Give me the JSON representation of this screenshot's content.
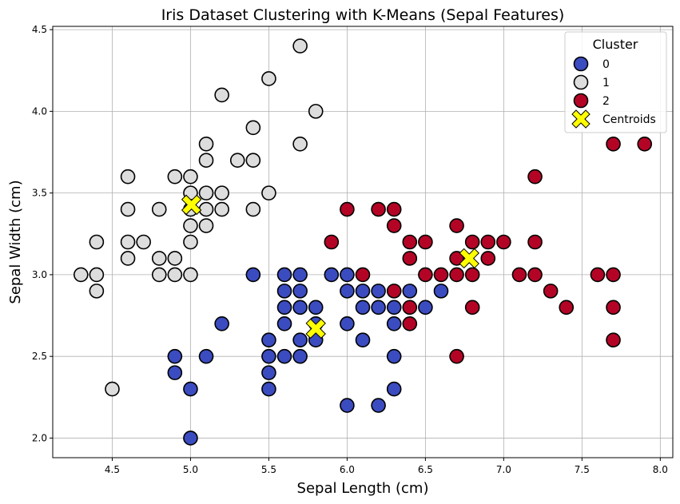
{
  "chart_data": {
    "type": "scatter",
    "title": "Iris Dataset Clustering with K-Means (Sepal Features)",
    "xlabel": "Sepal Length (cm)",
    "ylabel": "Sepal Width (cm)",
    "xlim": [
      4.12,
      8.08
    ],
    "ylim": [
      1.88,
      4.52
    ],
    "xticks": [
      "4.5",
      "5.0",
      "5.5",
      "6.0",
      "6.5",
      "7.0",
      "7.5",
      "8.0"
    ],
    "yticks": [
      "2.0",
      "2.5",
      "3.0",
      "3.5",
      "4.0",
      "4.5"
    ],
    "grid": true,
    "legend": {
      "title": "Cluster",
      "position": "top-right",
      "entries": [
        "0",
        "1",
        "2",
        "Centroids"
      ]
    },
    "colors": {
      "cluster_0": "#3b4cc0",
      "cluster_1": "#dddddd",
      "cluster_2": "#b40426",
      "centroid": "#ffff00"
    },
    "series": [
      {
        "name": "0",
        "points": [
          [
            5.4,
            3.0
          ],
          [
            5.2,
            2.7
          ],
          [
            4.9,
            2.5
          ],
          [
            4.9,
            2.4
          ],
          [
            5.0,
            2.3
          ],
          [
            5.0,
            2.0
          ],
          [
            5.1,
            2.5
          ],
          [
            5.5,
            2.6
          ],
          [
            5.5,
            2.5
          ],
          [
            5.5,
            2.4
          ],
          [
            5.5,
            2.3
          ],
          [
            5.6,
            3.0
          ],
          [
            5.6,
            2.9
          ],
          [
            5.6,
            2.8
          ],
          [
            5.6,
            2.7
          ],
          [
            5.6,
            2.5
          ],
          [
            5.7,
            3.0
          ],
          [
            5.7,
            2.9
          ],
          [
            5.7,
            2.8
          ],
          [
            5.7,
            2.6
          ],
          [
            5.7,
            2.5
          ],
          [
            5.8,
            2.8
          ],
          [
            5.8,
            2.7
          ],
          [
            5.8,
            2.6
          ],
          [
            5.9,
            3.0
          ],
          [
            6.0,
            3.0
          ],
          [
            6.0,
            2.9
          ],
          [
            6.0,
            2.7
          ],
          [
            6.0,
            2.2
          ],
          [
            6.1,
            2.9
          ],
          [
            6.1,
            2.8
          ],
          [
            6.1,
            2.6
          ],
          [
            6.2,
            2.9
          ],
          [
            6.2,
            2.8
          ],
          [
            6.2,
            2.2
          ],
          [
            6.3,
            2.8
          ],
          [
            6.3,
            2.7
          ],
          [
            6.3,
            2.5
          ],
          [
            6.3,
            2.3
          ],
          [
            6.4,
            2.9
          ],
          [
            6.5,
            2.8
          ],
          [
            6.6,
            2.9
          ]
        ]
      },
      {
        "name": "1",
        "points": [
          [
            4.3,
            3.0
          ],
          [
            4.4,
            3.2
          ],
          [
            4.4,
            3.0
          ],
          [
            4.4,
            2.9
          ],
          [
            4.5,
            2.3
          ],
          [
            4.6,
            3.6
          ],
          [
            4.6,
            3.4
          ],
          [
            4.6,
            3.2
          ],
          [
            4.6,
            3.1
          ],
          [
            4.7,
            3.2
          ],
          [
            4.8,
            3.4
          ],
          [
            4.8,
            3.1
          ],
          [
            4.8,
            3.0
          ],
          [
            4.9,
            3.6
          ],
          [
            4.9,
            3.1
          ],
          [
            4.9,
            3.0
          ],
          [
            5.0,
            3.6
          ],
          [
            5.0,
            3.5
          ],
          [
            5.0,
            3.4
          ],
          [
            5.0,
            3.3
          ],
          [
            5.0,
            3.2
          ],
          [
            5.0,
            3.0
          ],
          [
            5.1,
            3.8
          ],
          [
            5.1,
            3.7
          ],
          [
            5.1,
            3.5
          ],
          [
            5.1,
            3.4
          ],
          [
            5.1,
            3.3
          ],
          [
            5.2,
            4.1
          ],
          [
            5.2,
            3.5
          ],
          [
            5.2,
            3.4
          ],
          [
            5.3,
            3.7
          ],
          [
            5.4,
            3.9
          ],
          [
            5.4,
            3.7
          ],
          [
            5.4,
            3.4
          ],
          [
            5.5,
            4.2
          ],
          [
            5.5,
            3.5
          ],
          [
            5.7,
            4.4
          ],
          [
            5.7,
            3.8
          ],
          [
            5.8,
            4.0
          ]
        ]
      },
      {
        "name": "2",
        "points": [
          [
            5.9,
            3.2
          ],
          [
            6.0,
            3.4
          ],
          [
            6.1,
            3.0
          ],
          [
            6.2,
            3.4
          ],
          [
            6.3,
            3.4
          ],
          [
            6.3,
            3.3
          ],
          [
            6.3,
            2.9
          ],
          [
            6.4,
            3.2
          ],
          [
            6.4,
            3.1
          ],
          [
            6.4,
            2.8
          ],
          [
            6.4,
            2.7
          ],
          [
            6.5,
            3.2
          ],
          [
            6.5,
            3.0
          ],
          [
            6.6,
            3.0
          ],
          [
            6.7,
            3.3
          ],
          [
            6.7,
            3.1
          ],
          [
            6.7,
            3.0
          ],
          [
            6.7,
            2.5
          ],
          [
            6.8,
            3.2
          ],
          [
            6.8,
            3.0
          ],
          [
            6.8,
            2.8
          ],
          [
            6.9,
            3.2
          ],
          [
            6.9,
            3.1
          ],
          [
            7.0,
            3.2
          ],
          [
            7.1,
            3.0
          ],
          [
            7.2,
            3.6
          ],
          [
            7.2,
            3.2
          ],
          [
            7.2,
            3.0
          ],
          [
            7.3,
            2.9
          ],
          [
            7.4,
            2.8
          ],
          [
            7.6,
            3.0
          ],
          [
            7.7,
            3.8
          ],
          [
            7.7,
            3.0
          ],
          [
            7.7,
            2.8
          ],
          [
            7.7,
            2.6
          ],
          [
            7.9,
            3.8
          ]
        ]
      },
      {
        "name": "Centroids",
        "points": [
          [
            5.006,
            3.428
          ],
          [
            5.8,
            2.67
          ],
          [
            6.78,
            3.1
          ]
        ]
      }
    ]
  }
}
